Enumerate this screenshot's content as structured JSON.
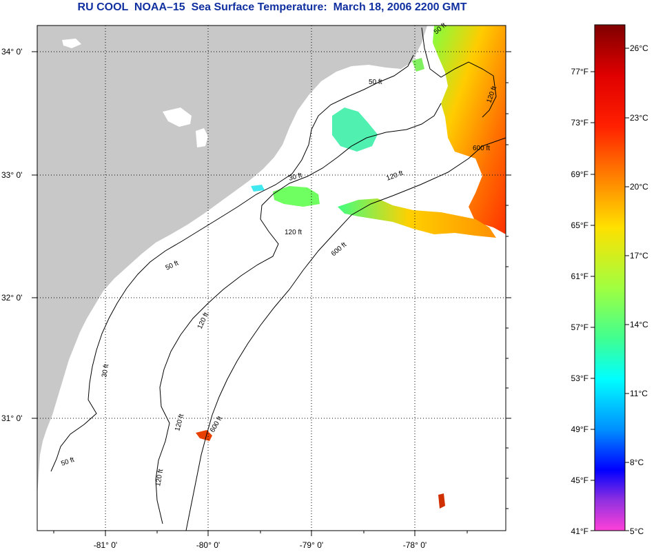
{
  "title": "RU COOL  NOAA–15  Sea Surface Temperature:  March 18, 2006 2200 GMT",
  "map": {
    "lon_labels": [
      "-81° 0'",
      "-80° 0'",
      "-79° 0'",
      "-78° 0'"
    ],
    "lat_labels": [
      "34° 0'",
      "33° 0'",
      "32° 0'",
      "31° 0'"
    ],
    "depth_contour_labels": [
      "50 ft",
      "50 ft",
      "50 ft",
      "50 ft",
      "30 ft",
      "30 ft",
      "120 ft",
      "120 ft",
      "120 ft",
      "120 ft",
      "120 ft",
      "120 ft",
      "600 ft",
      "600 ft",
      "600 ft"
    ],
    "colors": {
      "land": "#c8c8c8",
      "ocean": "#ffffff",
      "grid": "#000000"
    }
  },
  "colorbar": {
    "fahrenheit_labels": [
      "77°F",
      "73°F",
      "69°F",
      "65°F",
      "61°F",
      "57°F",
      "53°F",
      "49°F",
      "45°F",
      "41°F"
    ],
    "celsius_labels": [
      "26°C",
      "23°C",
      "20°C",
      "17°C",
      "14°C",
      "11°C",
      "8°C",
      "5°C"
    ],
    "gradient_stops": [
      "#8b0000",
      "#ff0000",
      "#ff8000",
      "#ffff00",
      "#80ff40",
      "#00ffff",
      "#0080ff",
      "#0000ff",
      "#8020e0",
      "#ff40d0"
    ]
  }
}
